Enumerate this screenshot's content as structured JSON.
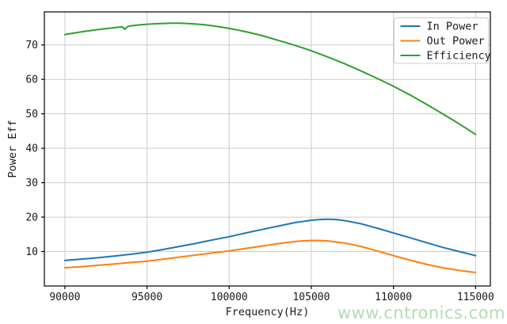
{
  "watermark": {
    "text": "www.cntronics.com",
    "color": "#b5dab5"
  },
  "chart_data": {
    "type": "line",
    "title": "",
    "xlabel": "Frequency(Hz)",
    "ylabel": "Power Eff",
    "x_ticks": [
      90000,
      95000,
      100000,
      105000,
      110000,
      115000
    ],
    "y_ticks": [
      10,
      20,
      30,
      40,
      50,
      60,
      70
    ],
    "xlim": [
      88750,
      115900
    ],
    "ylim": [
      0,
      79.6
    ],
    "grid": true,
    "grid_color": "#cccccc",
    "axis_color": "#000000",
    "legend_position": "upper right",
    "series": [
      {
        "name": "In Power",
        "color": "#1f77b4",
        "x": [
          90000,
          91000,
          92000,
          93000,
          94000,
          95000,
          96000,
          97000,
          98000,
          99000,
          100000,
          101000,
          102000,
          103000,
          104000,
          105000,
          105500,
          106000,
          106500,
          107000,
          108000,
          109000,
          110000,
          111000,
          112000,
          113000,
          114000,
          115000
        ],
        "values": [
          7.4,
          7.8,
          8.2,
          8.7,
          9.2,
          9.8,
          10.6,
          11.5,
          12.4,
          13.4,
          14.3,
          15.4,
          16.4,
          17.4,
          18.4,
          19.1,
          19.3,
          19.4,
          19.3,
          19.0,
          18.1,
          16.8,
          15.4,
          14.0,
          12.6,
          11.2,
          10.0,
          8.8
        ]
      },
      {
        "name": "Out Power",
        "color": "#ff7f0e",
        "x": [
          90000,
          91000,
          92000,
          93000,
          94000,
          95000,
          96000,
          97000,
          98000,
          99000,
          100000,
          101000,
          102000,
          103000,
          104000,
          104500,
          105000,
          105500,
          106000,
          107000,
          108000,
          109000,
          110000,
          111000,
          112000,
          113000,
          114000,
          115000
        ],
        "values": [
          5.3,
          5.6,
          6.0,
          6.4,
          6.8,
          7.2,
          7.8,
          8.4,
          9.0,
          9.6,
          10.2,
          10.9,
          11.6,
          12.3,
          12.9,
          13.1,
          13.2,
          13.2,
          13.1,
          12.5,
          11.5,
          10.2,
          8.8,
          7.5,
          6.3,
          5.3,
          4.5,
          3.9
        ]
      },
      {
        "name": "Efficiency",
        "color": "#2ca02c",
        "x": [
          90000,
          90500,
          91000,
          91500,
          92000,
          92500,
          93000,
          93300,
          93500,
          93650,
          93800,
          94000,
          94500,
          95000,
          95500,
          96000,
          96500,
          97000,
          97500,
          98000,
          98500,
          99000,
          99500,
          100000,
          100500,
          101000,
          101500,
          102000,
          102500,
          103000,
          103500,
          104000,
          104500,
          105000,
          106000,
          107000,
          108000,
          109000,
          110000,
          111000,
          112000,
          113000,
          114000,
          115000
        ],
        "values": [
          73.0,
          73.4,
          73.8,
          74.15,
          74.45,
          74.75,
          75.0,
          75.15,
          75.25,
          74.55,
          75.3,
          75.55,
          75.8,
          76.0,
          76.15,
          76.25,
          76.3,
          76.3,
          76.2,
          76.05,
          75.85,
          75.55,
          75.2,
          74.8,
          74.35,
          73.85,
          73.3,
          72.7,
          72.0,
          71.3,
          70.6,
          69.9,
          69.1,
          68.3,
          66.5,
          64.6,
          62.5,
          60.3,
          58.0,
          55.5,
          52.8,
          50.0,
          47.1,
          44.0
        ]
      }
    ]
  }
}
